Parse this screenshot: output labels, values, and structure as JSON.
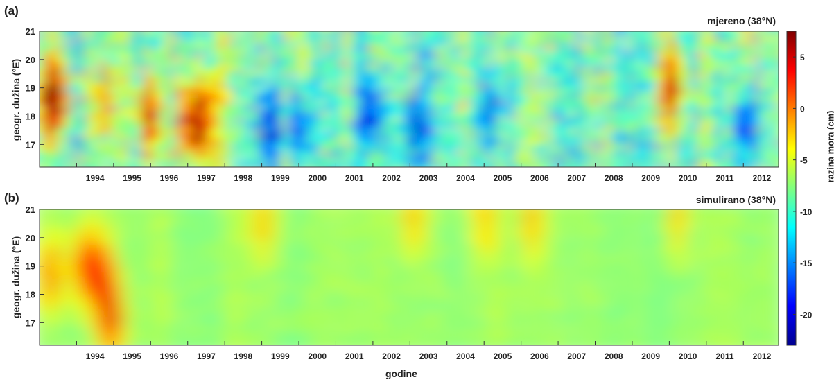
{
  "chart_data": [
    {
      "type": "heatmap",
      "panel_label": "(a)",
      "title": "mjereno (38°N)",
      "ylabel": "geogr. dužina (°E)",
      "xlabel": "",
      "x_tick_labels": [
        "1994",
        "1995",
        "1996",
        "1997",
        "1998",
        "1999",
        "2000",
        "2001",
        "2002",
        "2003",
        "2004",
        "2005",
        "2006",
        "2007",
        "2008",
        "2009",
        "2010",
        "2011",
        "2012"
      ],
      "y_ticks": [
        17,
        18,
        19,
        20,
        21
      ],
      "xlim": [
        1993.0,
        2012.95
      ],
      "ylim": [
        16.2,
        21.0
      ],
      "features": [
        {
          "t": 1993.2,
          "lon": 18.5,
          "value": 2
        },
        {
          "t": 1993.5,
          "lon": 18.8,
          "value": 1
        },
        {
          "t": 1994.7,
          "lon": 18.6,
          "value": 0
        },
        {
          "t": 1995.95,
          "lon": 18.0,
          "value": 4
        },
        {
          "t": 1997.05,
          "lon": 17.8,
          "value": 5
        },
        {
          "t": 1997.5,
          "lon": 17.8,
          "value": 2
        },
        {
          "t": 1999.2,
          "lon": 17.6,
          "value": -20
        },
        {
          "t": 2000.0,
          "lon": 17.6,
          "value": -19
        },
        {
          "t": 2002.0,
          "lon": 18.0,
          "value": -20
        },
        {
          "t": 2003.1,
          "lon": 17.5,
          "value": -19
        },
        {
          "t": 2005.2,
          "lon": 18.0,
          "value": -18
        },
        {
          "t": 2010.05,
          "lon": 19.0,
          "value": 5
        },
        {
          "t": 2012.1,
          "lon": 17.6,
          "value": -20
        }
      ]
    },
    {
      "type": "heatmap",
      "panel_label": "(b)",
      "title": "simulirano (38°N)",
      "ylabel": "geogr. dužina (°E)",
      "xlabel": "godine",
      "x_tick_labels": [
        "1994",
        "1995",
        "1996",
        "1997",
        "1998",
        "1999",
        "2000",
        "2001",
        "2002",
        "2003",
        "2004",
        "2005",
        "2006",
        "2007",
        "2008",
        "2009",
        "2010",
        "2011",
        "2012"
      ],
      "y_ticks": [
        17,
        18,
        19,
        20,
        21
      ],
      "xlim": [
        1993.0,
        2012.95
      ],
      "ylim": [
        16.2,
        21.0
      ],
      "features": [
        {
          "t": 1993.3,
          "lon": 18.7,
          "value": 1
        },
        {
          "t": 1994.2,
          "lon": 19.0,
          "value": 2
        },
        {
          "t": 1994.7,
          "lon": 18.6,
          "value": 1
        },
        {
          "t": 1994.95,
          "lon": 17.1,
          "value": 3
        },
        {
          "t": 1999.0,
          "lon": 20.7,
          "value": -2
        },
        {
          "t": 2003.1,
          "lon": 20.7,
          "value": -2
        },
        {
          "t": 2005.0,
          "lon": 20.7,
          "value": -2
        },
        {
          "t": 2006.3,
          "lon": 20.6,
          "value": -2
        },
        {
          "t": 2010.2,
          "lon": 20.7,
          "value": -2
        }
      ]
    }
  ],
  "colorbar": {
    "label": "razina mora (cm)",
    "range": [
      -23,
      7.5
    ],
    "ticks": [
      5,
      0,
      -5,
      -10,
      -15,
      -20
    ]
  }
}
